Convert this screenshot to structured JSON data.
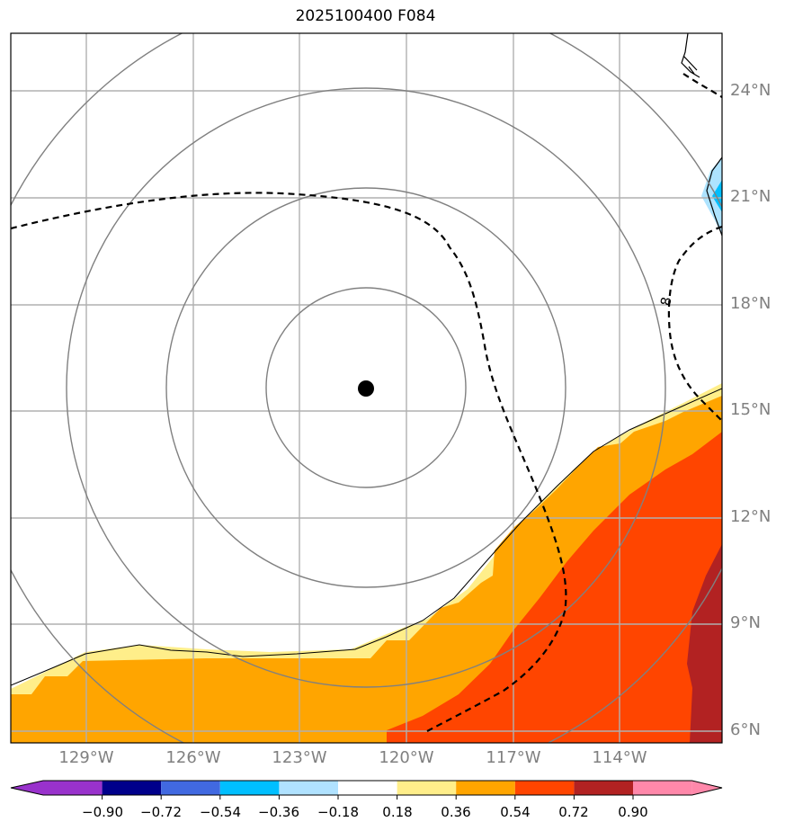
{
  "title": "2025100400 F084",
  "map": {
    "lat_labels": [
      "24°N",
      "21°N",
      "18°N",
      "15°N",
      "12°N",
      "9°N",
      "6°N"
    ],
    "lon_labels": [
      "129°W",
      "126°W",
      "123°W",
      "120°W",
      "117°W",
      "114°W"
    ],
    "contour_label": "8",
    "storm_center": {
      "lat": 15.6,
      "lon": "121.0°W"
    },
    "fill_colors": {
      "light_yellow": "#FFEE8A",
      "orange": "#FFA500",
      "red_orange": "#FF4500",
      "dark_red": "#B22222",
      "light_blue": "#ADE3FF",
      "blue": "#00BFFF"
    },
    "ring_color": "#808080",
    "grid_color": "#B0B0B0"
  },
  "colorbar": {
    "ticks": [
      "−0.90",
      "−0.72",
      "−0.54",
      "−0.36",
      "−0.18",
      "0.18",
      "0.36",
      "0.54",
      "0.72",
      "0.90"
    ],
    "colors": [
      "#9932CC",
      "#00008B",
      "#4169E1",
      "#00BFFF",
      "#B0E2FF",
      "#FFFFFF",
      "#FFEE8A",
      "#FFA500",
      "#FF4500",
      "#B22222",
      "#FF88AA"
    ]
  }
}
